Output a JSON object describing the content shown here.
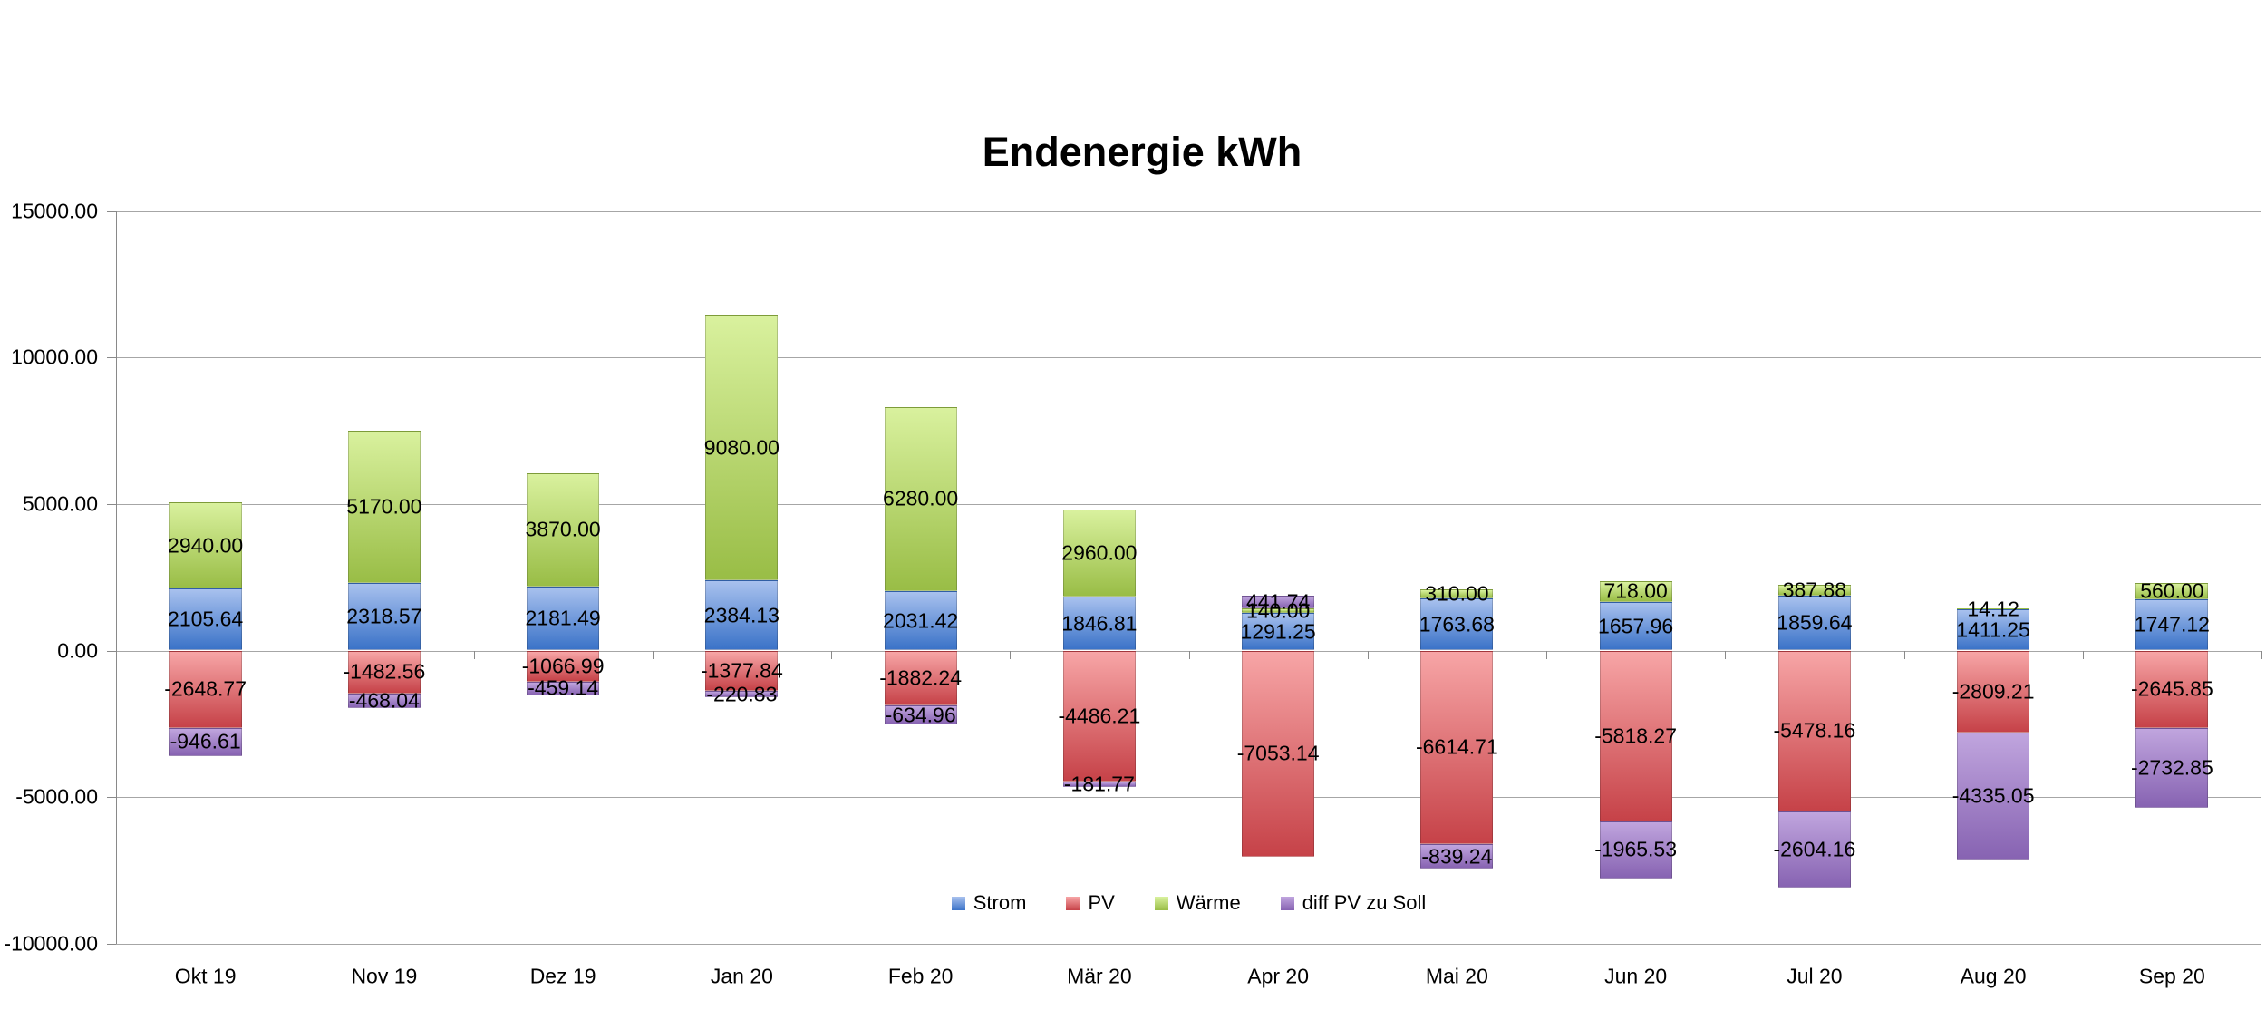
{
  "title": "Endenergie kWh",
  "chart_data": {
    "type": "bar",
    "stacked": true,
    "title": "Endenergie kWh",
    "xlabel": "",
    "ylabel": "",
    "grid": true,
    "legend_position": "bottom-center",
    "ylim": [
      -10000,
      15000
    ],
    "ytick_step": 5000,
    "yticks": [
      {
        "v": 15000,
        "label": "15000.00"
      },
      {
        "v": 10000,
        "label": "10000.00"
      },
      {
        "v": 5000,
        "label": "5000.00"
      },
      {
        "v": 0,
        "label": "0.00"
      },
      {
        "v": -5000,
        "label": "-5000.00"
      },
      {
        "v": -10000,
        "label": "-10000.00"
      }
    ],
    "categories": [
      "Okt 19",
      "Nov 19",
      "Dez 19",
      "Jan 20",
      "Feb 20",
      "Mär 20",
      "Apr 20",
      "Mai 20",
      "Jun 20",
      "Jul 20",
      "Aug 20",
      "Sep 20"
    ],
    "series": [
      {
        "name": "Strom",
        "color_top": "#A8C1EE",
        "color_bottom": "#3B73C8",
        "values": [
          2105.64,
          2318.57,
          2181.49,
          2384.13,
          2031.42,
          1846.81,
          1291.25,
          1763.68,
          1657.96,
          1859.64,
          1411.25,
          1747.12
        ]
      },
      {
        "name": "PV",
        "color_top": "#F7A5A6",
        "color_bottom": "#C64248",
        "values": [
          -2648.77,
          -1482.56,
          -1066.99,
          -1377.84,
          -1882.24,
          -4486.21,
          -7053.14,
          -6614.71,
          -5818.27,
          -5478.16,
          -2809.21,
          -2645.85
        ]
      },
      {
        "name": "Wärme",
        "color_top": "#D9F19E",
        "color_bottom": "#99BD46",
        "values": [
          2940.0,
          5170.0,
          3870.0,
          9080.0,
          6280.0,
          2960.0,
          140.0,
          310.0,
          718.0,
          387.88,
          14.12,
          560.0
        ]
      },
      {
        "name": "diff PV zu Soll",
        "color_top": "#C0A5DE",
        "color_bottom": "#8763B2",
        "values": [
          -946.61,
          -468.04,
          -459.14,
          -220.83,
          -634.96,
          -181.77,
          441.74,
          -839.24,
          -1965.53,
          -2604.16,
          -4335.05,
          -2732.85
        ]
      }
    ],
    "data_label_format": "0.00",
    "data_label_position": "center"
  }
}
